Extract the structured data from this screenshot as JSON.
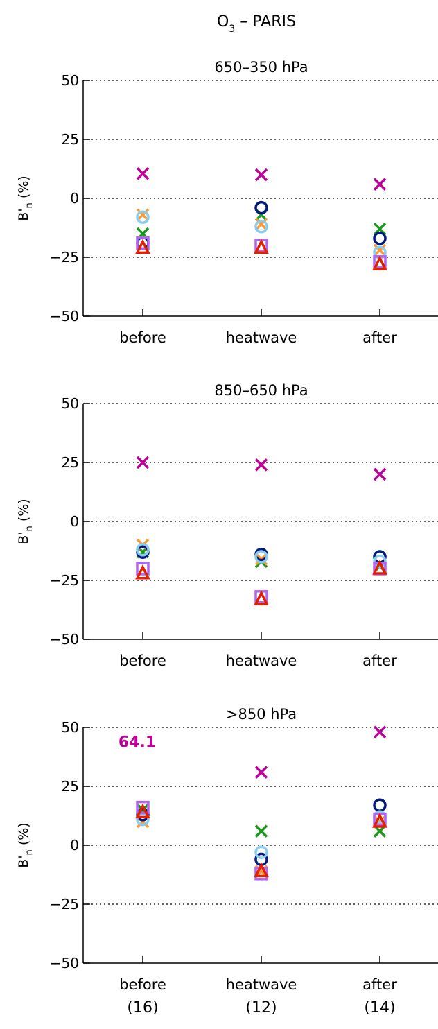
{
  "figure": {
    "title": "O",
    "title_sub": "3",
    "title_rest": " – PARIS"
  },
  "colors": {
    "magenta_x": "#c0009a",
    "green_x": "#1a9a1a",
    "orange_x": "#ff9933",
    "navy_circle": "#001a80",
    "lightblue_circle": "#88ccee",
    "purple_square": "#b266ee",
    "red_triangle": "#e02000"
  },
  "sample_counts": [
    "(16)",
    "(12)",
    "(14)"
  ],
  "chart_data": [
    {
      "type": "scatter",
      "title": "650–350 hPa",
      "ylabel": "B'n (%)",
      "ylim": [
        -50,
        50
      ],
      "yticks": [
        "50",
        "25",
        "0",
        "−25",
        "−50"
      ],
      "yticks_values": [
        50,
        25,
        0,
        -25,
        -50
      ],
      "grid": "dotted horizontal at 25, 0, -25",
      "categories": [
        "before",
        "heatwave",
        "after"
      ],
      "series": [
        {
          "marker": "x",
          "color": "#c0009a",
          "values": [
            10.5,
            10,
            6
          ]
        },
        {
          "marker": "x",
          "color": "#1a9a1a",
          "values": [
            -15,
            -7,
            -13
          ]
        },
        {
          "marker": "x",
          "color": "#ff9933",
          "values": [
            -7,
            -11,
            -22
          ]
        },
        {
          "marker": "circle",
          "color": "#001a80",
          "values": [
            -19,
            -4,
            -17
          ]
        },
        {
          "marker": "circle",
          "color": "#88ccee",
          "values": [
            -8,
            -12,
            -23
          ]
        },
        {
          "marker": "square",
          "color": "#b266ee",
          "values": [
            -19,
            -20,
            -27
          ]
        },
        {
          "marker": "triangle",
          "color": "#e02000",
          "values": [
            -21,
            -21,
            -28
          ]
        }
      ]
    },
    {
      "type": "scatter",
      "title": "850–650 hPa",
      "ylabel": "B'n (%)",
      "ylim": [
        -50,
        50
      ],
      "yticks": [
        "50",
        "25",
        "0",
        "−25",
        "−50"
      ],
      "yticks_values": [
        50,
        25,
        0,
        -25,
        -50
      ],
      "grid": "dotted horizontal at 25, 0, -25",
      "categories": [
        "before",
        "heatwave",
        "after"
      ],
      "series": [
        {
          "marker": "x",
          "color": "#c0009a",
          "values": [
            25,
            24,
            20
          ]
        },
        {
          "marker": "x",
          "color": "#1a9a1a",
          "values": [
            -13,
            -17,
            -19
          ]
        },
        {
          "marker": "x",
          "color": "#ff9933",
          "values": [
            -10,
            -16,
            -18
          ]
        },
        {
          "marker": "circle",
          "color": "#001a80",
          "values": [
            -13,
            -14,
            -15
          ]
        },
        {
          "marker": "circle",
          "color": "#88ccee",
          "values": [
            -12,
            -15,
            -17
          ]
        },
        {
          "marker": "square",
          "color": "#b266ee",
          "values": [
            -20,
            -32,
            -20
          ]
        },
        {
          "marker": "triangle",
          "color": "#e02000",
          "values": [
            -22,
            -33,
            -20
          ]
        }
      ]
    },
    {
      "type": "scatter",
      "title": ">850 hPa",
      "ylabel": "B'n (%)",
      "ylim": [
        -50,
        50
      ],
      "yticks": [
        "50",
        "25",
        "0",
        "−25",
        "−50"
      ],
      "yticks_values": [
        50,
        25,
        0,
        -25,
        -50
      ],
      "grid": "dotted horizontal at 25, 0, -25",
      "categories": [
        "before",
        "heatwave",
        "after"
      ],
      "annotation": {
        "text": "64.1",
        "color": "#c0009a",
        "category_index": 0,
        "y": 44
      },
      "series": [
        {
          "marker": "x",
          "color": "#c0009a",
          "values": [
            null,
            31,
            48
          ]
        },
        {
          "marker": "x",
          "color": "#1a9a1a",
          "values": [
            15,
            6,
            6
          ]
        },
        {
          "marker": "x",
          "color": "#ff9933",
          "values": [
            10,
            -11,
            10
          ]
        },
        {
          "marker": "circle",
          "color": "#001a80",
          "values": [
            13,
            -6,
            17
          ]
        },
        {
          "marker": "circle",
          "color": "#88ccee",
          "values": [
            11,
            -3,
            12
          ]
        },
        {
          "marker": "square",
          "color": "#b266ee",
          "values": [
            16,
            -12,
            11
          ]
        },
        {
          "marker": "triangle",
          "color": "#e02000",
          "values": [
            14,
            -11,
            10
          ]
        }
      ]
    }
  ]
}
